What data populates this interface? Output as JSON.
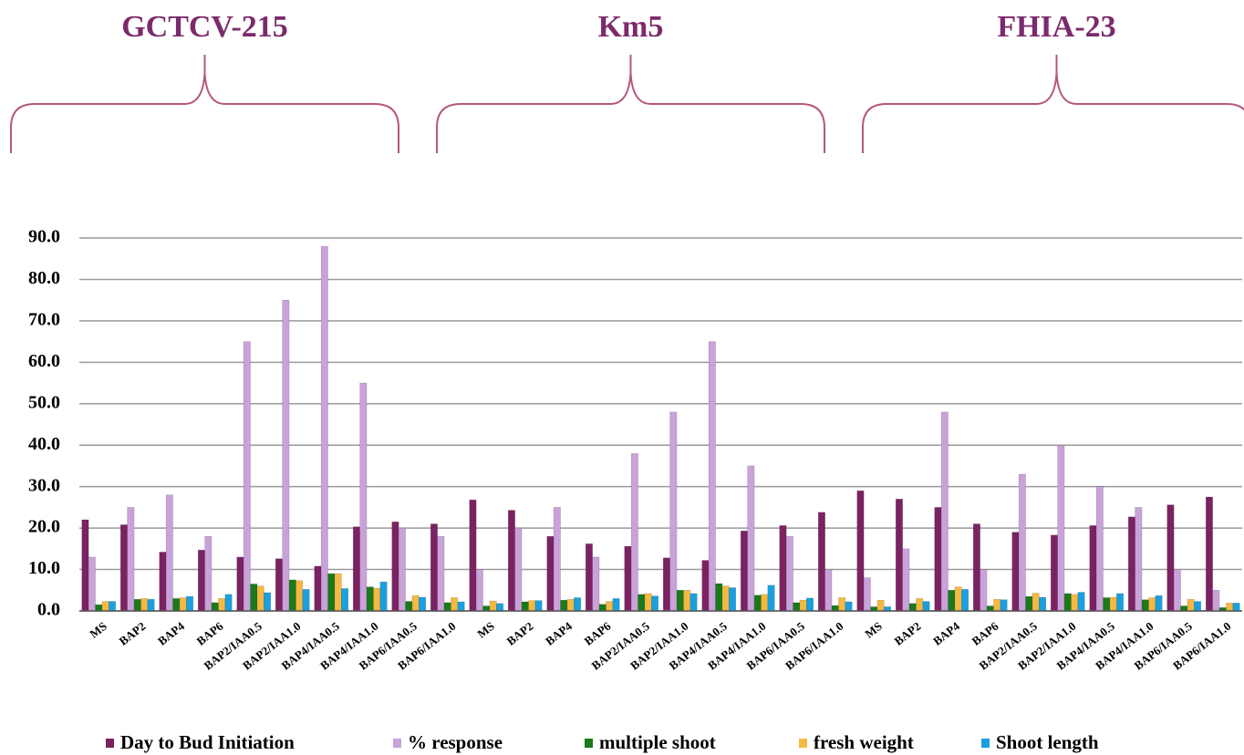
{
  "chart_data": {
    "type": "bar",
    "groups": [
      "GCTCV-215",
      "Km5",
      "FHIA-23"
    ],
    "categories": [
      "MS",
      "BAP2",
      "BAP4",
      "BAP6",
      "BAP2/IAA0.5",
      "BAP2/IAA1.0",
      "BAP4/IAA0.5",
      "BAP4/IAA1.0",
      "BAP6/IAA0.5",
      "BAP6/IAA1.0",
      "MS",
      "BAP2",
      "BAP4",
      "BAP6",
      "BAP2/IAA0.5",
      "BAP2/IAA1.0",
      "BAP4/IAA0.5",
      "BAP4/IAA1.0",
      "BAP6/IAA0.5",
      "BAP6/IAA1.0",
      "MS",
      "BAP2",
      "BAP4",
      "BAP6",
      "BAP2/IAA0.5",
      "BAP2/IAA1.0",
      "BAP4/IAA0.5",
      "BAP4/IAA1.0",
      "BAP6/IAA0.5",
      "BAP6/IAA1.0"
    ],
    "series": [
      {
        "name": "Day to Bud Initiation",
        "color": "#7b2262",
        "values": [
          22,
          20.8,
          14.2,
          14.7,
          13,
          12.6,
          10.8,
          20.3,
          21.5,
          21,
          26.8,
          24.3,
          18,
          16.2,
          15.6,
          12.8,
          12.2,
          19.3,
          20.6,
          23.8,
          29,
          27,
          25,
          21,
          19,
          18.3,
          20.6,
          22.7,
          25.6,
          27.5
        ]
      },
      {
        "name": "% response",
        "color": "#c9a2da",
        "values": [
          13,
          25,
          28,
          18,
          65,
          75,
          88,
          55,
          20,
          18,
          10,
          20,
          25,
          13,
          38,
          48,
          65,
          35,
          18,
          10,
          8,
          15,
          48,
          10,
          33,
          40,
          30,
          25,
          10,
          5
        ]
      },
      {
        "name": "multiple shoot",
        "color": "#1a7a1a",
        "values": [
          1.5,
          2.8,
          3,
          2,
          6.5,
          7.5,
          9,
          5.8,
          2.3,
          2,
          1.2,
          2.2,
          2.6,
          1.6,
          4,
          5,
          6.6,
          3.8,
          2,
          1.3,
          1,
          1.8,
          5,
          1.2,
          3.5,
          4.2,
          3.2,
          2.7,
          1.2,
          0.8
        ]
      },
      {
        "name": "fresh weight",
        "color": "#f5b942",
        "values": [
          2.3,
          3,
          3.2,
          3,
          6,
          7.3,
          9,
          5.5,
          3.7,
          3.2,
          2.4,
          2.5,
          2.8,
          2.3,
          4.2,
          5,
          6,
          4,
          2.6,
          3.2,
          2.6,
          3,
          5.8,
          2.8,
          4.3,
          4,
          3.3,
          3.2,
          2.8,
          1.9
        ]
      },
      {
        "name": "Shoot length",
        "color": "#1aa0e0",
        "values": [
          2.3,
          2.8,
          3.5,
          4,
          4.4,
          5.2,
          5.4,
          7,
          3.3,
          2.2,
          1.8,
          2.5,
          3.2,
          3,
          3.6,
          4.2,
          5.6,
          6.2,
          3.1,
          2.2,
          1,
          2.3,
          5.2,
          2.7,
          3.3,
          4.5,
          4.2,
          3.7,
          2.3,
          1.9
        ]
      }
    ],
    "ylim": [
      0,
      90
    ],
    "yticks": [
      {
        "value": 0,
        "label": "0.0"
      },
      {
        "value": 10,
        "label": "10.0"
      },
      {
        "value": 20,
        "label": "20.0"
      },
      {
        "value": 30,
        "label": "30.0"
      },
      {
        "value": 40,
        "label": "40.0"
      },
      {
        "value": 50,
        "label": "50.0"
      },
      {
        "value": 60,
        "label": "60.0"
      },
      {
        "value": 70,
        "label": "70.0"
      },
      {
        "value": 80,
        "label": "80.0"
      },
      {
        "value": 90,
        "label": "90.0"
      }
    ],
    "grid": true
  }
}
